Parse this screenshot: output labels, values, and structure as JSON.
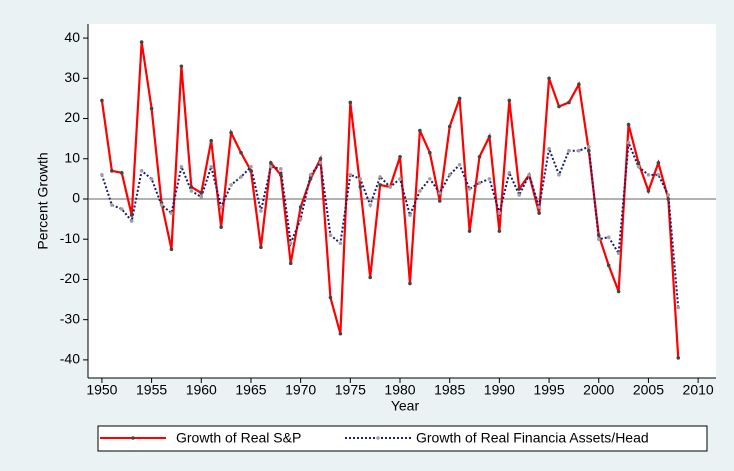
{
  "chart_data": {
    "type": "line",
    "x_label": "Year",
    "y_label": "Percent Growth",
    "x": [
      1950,
      1951,
      1952,
      1953,
      1954,
      1955,
      1956,
      1957,
      1958,
      1959,
      1960,
      1961,
      1962,
      1963,
      1964,
      1965,
      1966,
      1967,
      1968,
      1969,
      1970,
      1971,
      1972,
      1973,
      1974,
      1975,
      1976,
      1977,
      1978,
      1979,
      1980,
      1981,
      1982,
      1983,
      1984,
      1985,
      1986,
      1987,
      1988,
      1989,
      1990,
      1991,
      1992,
      1993,
      1994,
      1995,
      1996,
      1997,
      1998,
      1999,
      2000,
      2001,
      2002,
      2003,
      2004,
      2005,
      2006,
      2007,
      2008
    ],
    "series": [
      {
        "name": "Growth of Real S&P",
        "color": "#ff0000",
        "marker_color": "#444444",
        "dash": false,
        "values": [
          24.5,
          7,
          6.5,
          -4,
          39,
          22.5,
          -1,
          -12.5,
          33,
          3,
          1.5,
          14.5,
          -7,
          16.5,
          11.5,
          7,
          -12,
          9,
          6,
          -16,
          -2,
          5,
          10,
          -24.5,
          -33.5,
          24,
          3,
          -19.5,
          3.5,
          3,
          10.5,
          -21,
          17,
          11.5,
          -0.5,
          18,
          25,
          -8,
          10.5,
          15.5,
          -8,
          24.5,
          2.5,
          6,
          -3.5,
          30,
          23,
          24,
          28.5,
          12,
          -9,
          -16.5,
          -23,
          18.5,
          9,
          2,
          9,
          0,
          -39.5
        ]
      },
      {
        "name": "Growth of Real Financia Assets/Head",
        "color": "#1a1a6e",
        "marker_color": "#a0a0a0",
        "dash": true,
        "values": [
          6,
          -1.5,
          -2.5,
          -5.5,
          7,
          5,
          -1.5,
          -3.5,
          8,
          2,
          0.5,
          8,
          -2,
          3.5,
          5.5,
          8,
          -3,
          8,
          7.5,
          -11,
          -5,
          6,
          9,
          -9,
          -11,
          6,
          5,
          -1.5,
          5.5,
          3,
          5,
          -4,
          2,
          5,
          1.5,
          6,
          8.5,
          2.5,
          4,
          5,
          -3.5,
          6.5,
          1,
          6,
          -2,
          12.5,
          6,
          12,
          12,
          13,
          -10,
          -9.5,
          -13.5,
          14,
          8,
          6,
          6,
          1,
          -27
        ]
      }
    ],
    "xlim": [
      1948.6,
      2011.8
    ],
    "ylim": [
      -44.5,
      43.5
    ],
    "xticks": [
      1950,
      1955,
      1960,
      1965,
      1970,
      1975,
      1980,
      1985,
      1990,
      1995,
      2000,
      2005,
      2010
    ],
    "yticks": [
      -40,
      -30,
      -20,
      -10,
      0,
      10,
      20,
      30,
      40
    ],
    "zero_line": true,
    "grid": false
  }
}
